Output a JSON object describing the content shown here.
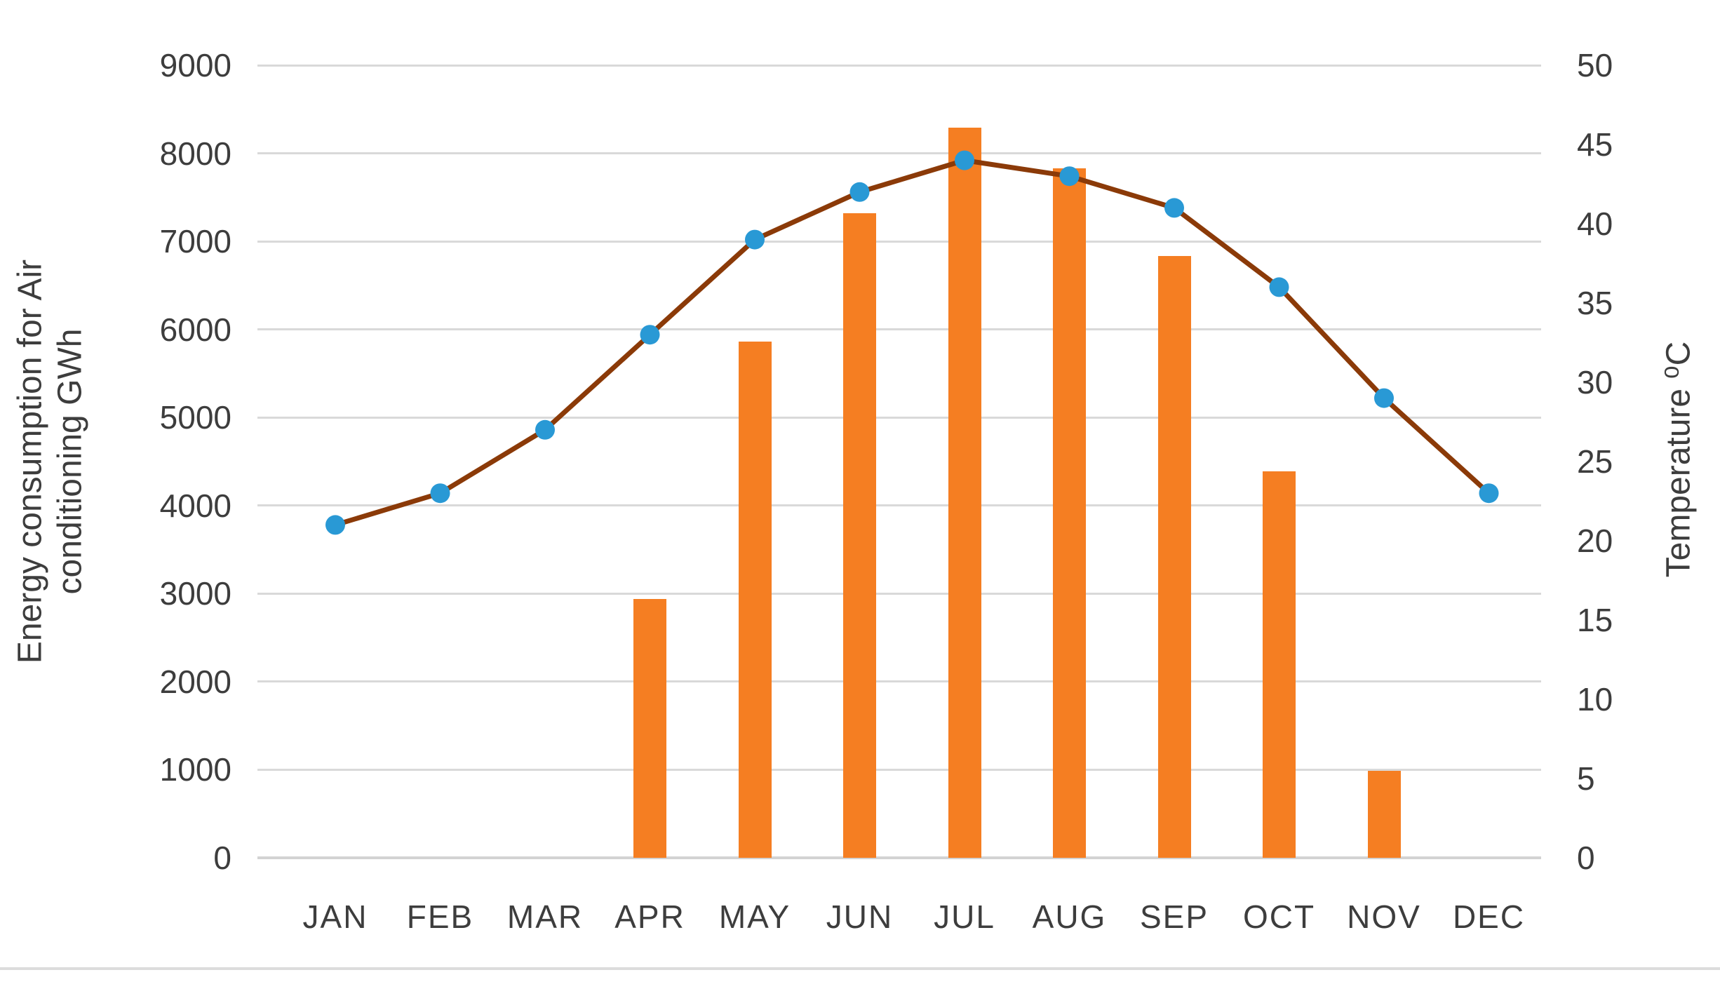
{
  "chart_data": {
    "type": "combo-bar-line",
    "categories": [
      "JAN",
      "FEB",
      "MAR",
      "APR",
      "MAY",
      "JUN",
      "JUL",
      "AUG",
      "SEP",
      "OCT",
      "NOV",
      "DEC"
    ],
    "series": [
      {
        "name": "Energy consumption for Air conditioning",
        "type": "bar",
        "axis": "left",
        "values": [
          0,
          0,
          0,
          2940,
          5860,
          7320,
          8290,
          7830,
          6830,
          4390,
          990,
          0
        ],
        "color": "#F57E22"
      },
      {
        "name": "Temperature",
        "type": "line",
        "axis": "right",
        "values": [
          21,
          23,
          27,
          33,
          39,
          42,
          44,
          43,
          41,
          36,
          29,
          23
        ],
        "line_color": "#8B3A08",
        "marker_color": "#2999D5"
      }
    ],
    "left_axis": {
      "title_lines": [
        "Energy consumption for Air",
        "conditioning GWh"
      ],
      "min": 0,
      "max": 9000,
      "step": 1000,
      "tick_labels": [
        "0",
        "1000",
        "2000",
        "3000",
        "4000",
        "5000",
        "6000",
        "7000",
        "8000",
        "9000"
      ]
    },
    "right_axis": {
      "title": "Temperature ⁰C",
      "min": 0,
      "max": 50,
      "step": 5,
      "tick_labels": [
        "0",
        "5",
        "10",
        "15",
        "20",
        "25",
        "30",
        "35",
        "40",
        "45",
        "50"
      ]
    },
    "grid": {
      "show": true,
      "color": "#D9D9D9",
      "zero_line_color": "#D3D3D3"
    },
    "plot_bg": "#FFFFFF",
    "separator_color": "#DCDCDC"
  }
}
